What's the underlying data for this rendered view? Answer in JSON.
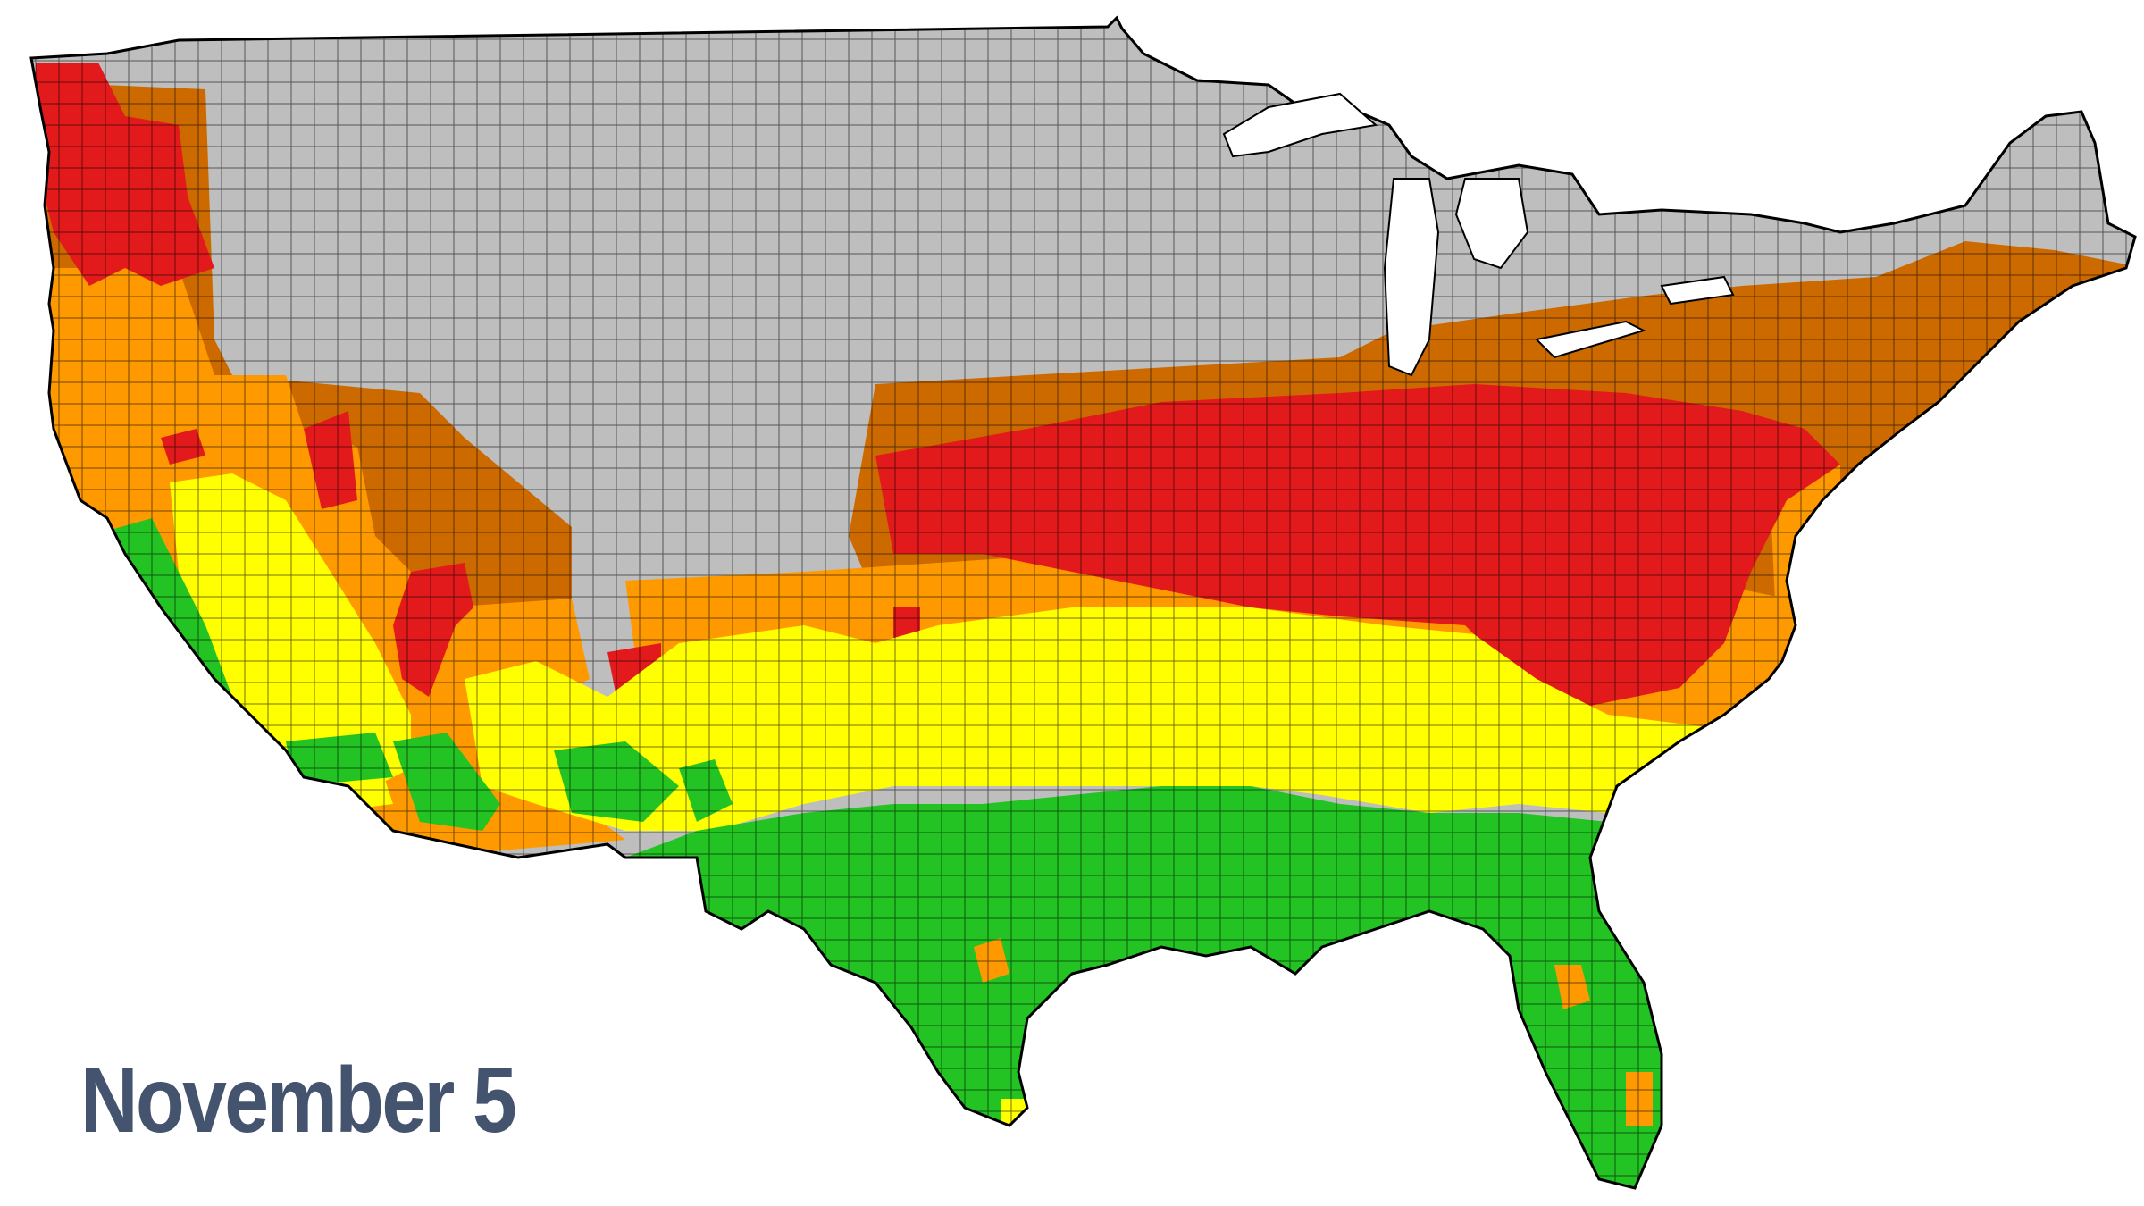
{
  "date_label": "November 5",
  "colors": {
    "none": "#bebebe",
    "peak": "#e31a1c",
    "past_peak": "#cc6a00",
    "near_peak": "#ff9900",
    "partial": "#ffff00",
    "minimal": "#22c322",
    "border": "#000000",
    "label": "#44546f"
  }
}
